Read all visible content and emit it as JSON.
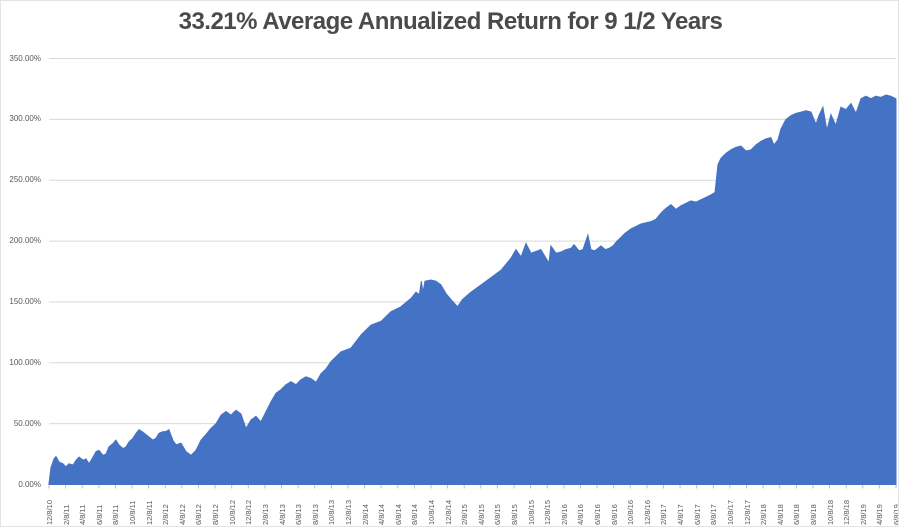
{
  "chart_data": {
    "type": "area",
    "title": "33.21% Average Annualized Return for 9 1/2 Years",
    "xlabel": "",
    "ylabel": "",
    "ylim": [
      0,
      350
    ],
    "grid": true,
    "legend_position": "none",
    "y_tick_labels": [
      "0.00%",
      "50.00%",
      "100.00%",
      "150.00%",
      "200.00%",
      "250.00%",
      "300.00%",
      "350.00%"
    ],
    "x_labels": [
      "12/8/10",
      "2/8/11",
      "4/8/11",
      "6/8/11",
      "8/8/11",
      "10/8/11",
      "12/8/11",
      "2/8/12",
      "4/8/12",
      "6/8/12",
      "8/8/12",
      "10/8/12",
      "12/8/12",
      "2/8/13",
      "4/8/13",
      "6/8/13",
      "8/8/13",
      "10/8/13",
      "12/8/13",
      "2/8/14",
      "4/8/14",
      "6/8/14",
      "8/8/14",
      "10/8/14",
      "12/8/14",
      "2/8/15",
      "4/8/15",
      "6/8/15",
      "8/8/15",
      "10/8/15",
      "12/8/15",
      "2/8/16",
      "4/8/16",
      "6/8/16",
      "8/8/16",
      "10/8/16",
      "12/8/16",
      "2/8/17",
      "4/8/17",
      "6/8/17",
      "8/8/17",
      "10/8/17",
      "12/8/17",
      "2/8/18",
      "4/8/18",
      "6/8/18",
      "8/8/18",
      "10/8/18",
      "12/8/18",
      "2/8/19",
      "4/8/19",
      "6/8/19"
    ],
    "colors": {
      "area": "#4472C4",
      "grid": "#D9D9D9",
      "axis_text": "#595959",
      "title_text": "#4A4A4A",
      "tick": "#BFBFBF"
    },
    "series": [
      {
        "value_units": "percent_cumulative_return",
        "x_units": "tick_index (0 = 12/8/10, 51 = 6/8/19, 2-month steps)",
        "points": [
          [
            0,
            1
          ],
          [
            0.12,
            14
          ],
          [
            0.3,
            21
          ],
          [
            0.42,
            23
          ],
          [
            0.6,
            18.5
          ],
          [
            0.84,
            17
          ],
          [
            1.02,
            14.5
          ],
          [
            1.2,
            17
          ],
          [
            1.45,
            16
          ],
          [
            1.63,
            20
          ],
          [
            1.81,
            22.5
          ],
          [
            2.05,
            20
          ],
          [
            2.23,
            21
          ],
          [
            2.41,
            17
          ],
          [
            2.65,
            22.5
          ],
          [
            2.83,
            27
          ],
          [
            3.01,
            28
          ],
          [
            3.25,
            24
          ],
          [
            3.43,
            25
          ],
          [
            3.61,
            31
          ],
          [
            3.85,
            33.5
          ],
          [
            4.03,
            36.5
          ],
          [
            4.21,
            32.5
          ],
          [
            4.46,
            29.5
          ],
          [
            4.64,
            31
          ],
          [
            4.82,
            35
          ],
          [
            5.06,
            38
          ],
          [
            5.24,
            42
          ],
          [
            5.42,
            45
          ],
          [
            5.66,
            43
          ],
          [
            5.84,
            41
          ],
          [
            6.02,
            39
          ],
          [
            6.26,
            36.5
          ],
          [
            6.44,
            38
          ],
          [
            6.62,
            42
          ],
          [
            6.86,
            43.5
          ],
          [
            7.04,
            43.5
          ],
          [
            7.22,
            45
          ],
          [
            7.47,
            36
          ],
          [
            7.65,
            32.5
          ],
          [
            7.95,
            34
          ],
          [
            8.25,
            27
          ],
          [
            8.55,
            24
          ],
          [
            8.85,
            28
          ],
          [
            9.15,
            36.5
          ],
          [
            9.45,
            41
          ],
          [
            9.75,
            46
          ],
          [
            10.06,
            50
          ],
          [
            10.36,
            57
          ],
          [
            10.66,
            60
          ],
          [
            10.96,
            57
          ],
          [
            11.26,
            61
          ],
          [
            11.56,
            58
          ],
          [
            11.86,
            46
          ],
          [
            12.16,
            53
          ],
          [
            12.46,
            56
          ],
          [
            12.76,
            51.5
          ],
          [
            13.07,
            60
          ],
          [
            13.37,
            68
          ],
          [
            13.67,
            75
          ],
          [
            13.97,
            78
          ],
          [
            14.27,
            82
          ],
          [
            14.57,
            84.5
          ],
          [
            14.87,
            82
          ],
          [
            15.17,
            86
          ],
          [
            15.47,
            88.5
          ],
          [
            15.77,
            87
          ],
          [
            16.08,
            84
          ],
          [
            16.38,
            91
          ],
          [
            16.68,
            95
          ],
          [
            16.98,
            101
          ],
          [
            17.58,
            109
          ],
          [
            18.18,
            112
          ],
          [
            18.79,
            123
          ],
          [
            19.39,
            131
          ],
          [
            19.99,
            134
          ],
          [
            20.59,
            142
          ],
          [
            21.19,
            146
          ],
          [
            21.8,
            153
          ],
          [
            22.1,
            158
          ],
          [
            22.3,
            156
          ],
          [
            22.42,
            167
          ],
          [
            22.52,
            158
          ],
          [
            22.64,
            167
          ],
          [
            23,
            168
          ],
          [
            23.3,
            167
          ],
          [
            23.6,
            164
          ],
          [
            23.9,
            157
          ],
          [
            24.2,
            152
          ],
          [
            24.6,
            146
          ],
          [
            24.9,
            152
          ],
          [
            25.41,
            158
          ],
          [
            26.01,
            164
          ],
          [
            26.61,
            170
          ],
          [
            27.21,
            176
          ],
          [
            27.82,
            186
          ],
          [
            28.12,
            193
          ],
          [
            28.42,
            187
          ],
          [
            28.72,
            198
          ],
          [
            29.02,
            190
          ],
          [
            29.62,
            193
          ],
          [
            30.1,
            182
          ],
          [
            30.22,
            196
          ],
          [
            30.53,
            190
          ],
          [
            30.83,
            191
          ],
          [
            31.13,
            193
          ],
          [
            31.43,
            194
          ],
          [
            31.61,
            197
          ],
          [
            31.91,
            192
          ],
          [
            32.15,
            193
          ],
          [
            32.45,
            205
          ],
          [
            32.63,
            193
          ],
          [
            32.87,
            192
          ],
          [
            33.23,
            196
          ],
          [
            33.5,
            193
          ],
          [
            33.72,
            194
          ],
          [
            33.96,
            196
          ],
          [
            34.2,
            200
          ],
          [
            34.44,
            203
          ],
          [
            34.68,
            206.5
          ],
          [
            35.04,
            210
          ],
          [
            35.64,
            214
          ],
          [
            36.25,
            216
          ],
          [
            36.55,
            218
          ],
          [
            36.85,
            223
          ],
          [
            37.15,
            227
          ],
          [
            37.45,
            230
          ],
          [
            37.75,
            226
          ],
          [
            38.05,
            229
          ],
          [
            38.35,
            231
          ],
          [
            38.65,
            233
          ],
          [
            38.96,
            232
          ],
          [
            39.26,
            234
          ],
          [
            39.56,
            236
          ],
          [
            39.86,
            238
          ],
          [
            40.1,
            240
          ],
          [
            40.28,
            263
          ],
          [
            40.46,
            268
          ],
          [
            40.76,
            272
          ],
          [
            41.06,
            275
          ],
          [
            41.36,
            277
          ],
          [
            41.66,
            278
          ],
          [
            41.97,
            274
          ],
          [
            42.27,
            275
          ],
          [
            42.57,
            279
          ],
          [
            42.87,
            282
          ],
          [
            43.17,
            284
          ],
          [
            43.47,
            285
          ],
          [
            43.65,
            279
          ],
          [
            43.89,
            283
          ],
          [
            44.07,
            292
          ],
          [
            44.37,
            300
          ],
          [
            44.67,
            303
          ],
          [
            44.98,
            305
          ],
          [
            45.28,
            306
          ],
          [
            45.58,
            307
          ],
          [
            45.88,
            306
          ],
          [
            46.18,
            296
          ],
          [
            46.36,
            303
          ],
          [
            46.6,
            310
          ],
          [
            46.84,
            291
          ],
          [
            47.08,
            304
          ],
          [
            47.38,
            295
          ],
          [
            47.68,
            310
          ],
          [
            47.99,
            308
          ],
          [
            48.29,
            313
          ],
          [
            48.59,
            305
          ],
          [
            48.89,
            317
          ],
          [
            49.19,
            319
          ],
          [
            49.49,
            317
          ],
          [
            49.79,
            319
          ],
          [
            50.09,
            318
          ],
          [
            50.39,
            320
          ],
          [
            50.69,
            319
          ],
          [
            50.99,
            317
          ],
          [
            51,
            316
          ]
        ]
      }
    ]
  }
}
